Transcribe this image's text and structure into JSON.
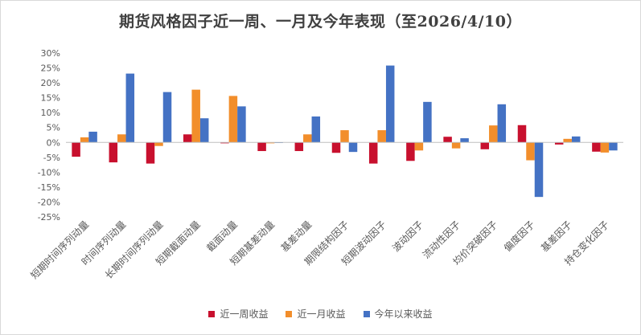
{
  "chart_data": {
    "type": "bar",
    "title": "期货风格因子近一周、一月及今年表现（至2026/4/10）",
    "xlabel": "",
    "ylabel": "",
    "ylim": [
      -0.25,
      0.3
    ],
    "yticks": [
      0.3,
      0.25,
      0.2,
      0.15,
      0.1,
      0.05,
      0.0,
      -0.05,
      -0.1,
      -0.15,
      -0.2,
      -0.25
    ],
    "ytick_labels": [
      "30%",
      "25%",
      "20%",
      "15%",
      "10%",
      "5%",
      "0%",
      "-5%",
      "-10%",
      "-15%",
      "-20%",
      "-25%"
    ],
    "grid": false,
    "legend_position": "bottom",
    "categories": [
      "短期时间序列动量",
      "时间序列动量",
      "长期时间序列动量",
      "短期截面动量",
      "截面动量",
      "短期基差动量",
      "基差动量",
      "期限结构因子",
      "短期波动因子",
      "波动因子",
      "流动性因子",
      "均价突破因子",
      "偏度因子",
      "基差因子",
      "持仓变化因子"
    ],
    "series": [
      {
        "name": "近一周收益",
        "color": "#c8102e",
        "values": [
          -0.048,
          -0.067,
          -0.071,
          0.027,
          -0.003,
          -0.029,
          -0.029,
          -0.035,
          -0.071,
          -0.062,
          0.019,
          -0.023,
          0.058,
          -0.007,
          -0.031
        ]
      },
      {
        "name": "近一月收益",
        "color": "#f28e2b",
        "values": [
          0.017,
          0.027,
          -0.012,
          0.177,
          0.156,
          -0.003,
          0.027,
          0.041,
          0.041,
          -0.027,
          -0.02,
          0.057,
          -0.06,
          0.012,
          -0.034
        ]
      },
      {
        "name": "今年以来收益",
        "color": "#4472c4",
        "values": [
          0.036,
          0.231,
          0.169,
          0.081,
          0.121,
          -0.002,
          0.087,
          -0.032,
          0.258,
          0.136,
          0.014,
          0.128,
          -0.183,
          0.02,
          -0.027
        ]
      }
    ]
  }
}
